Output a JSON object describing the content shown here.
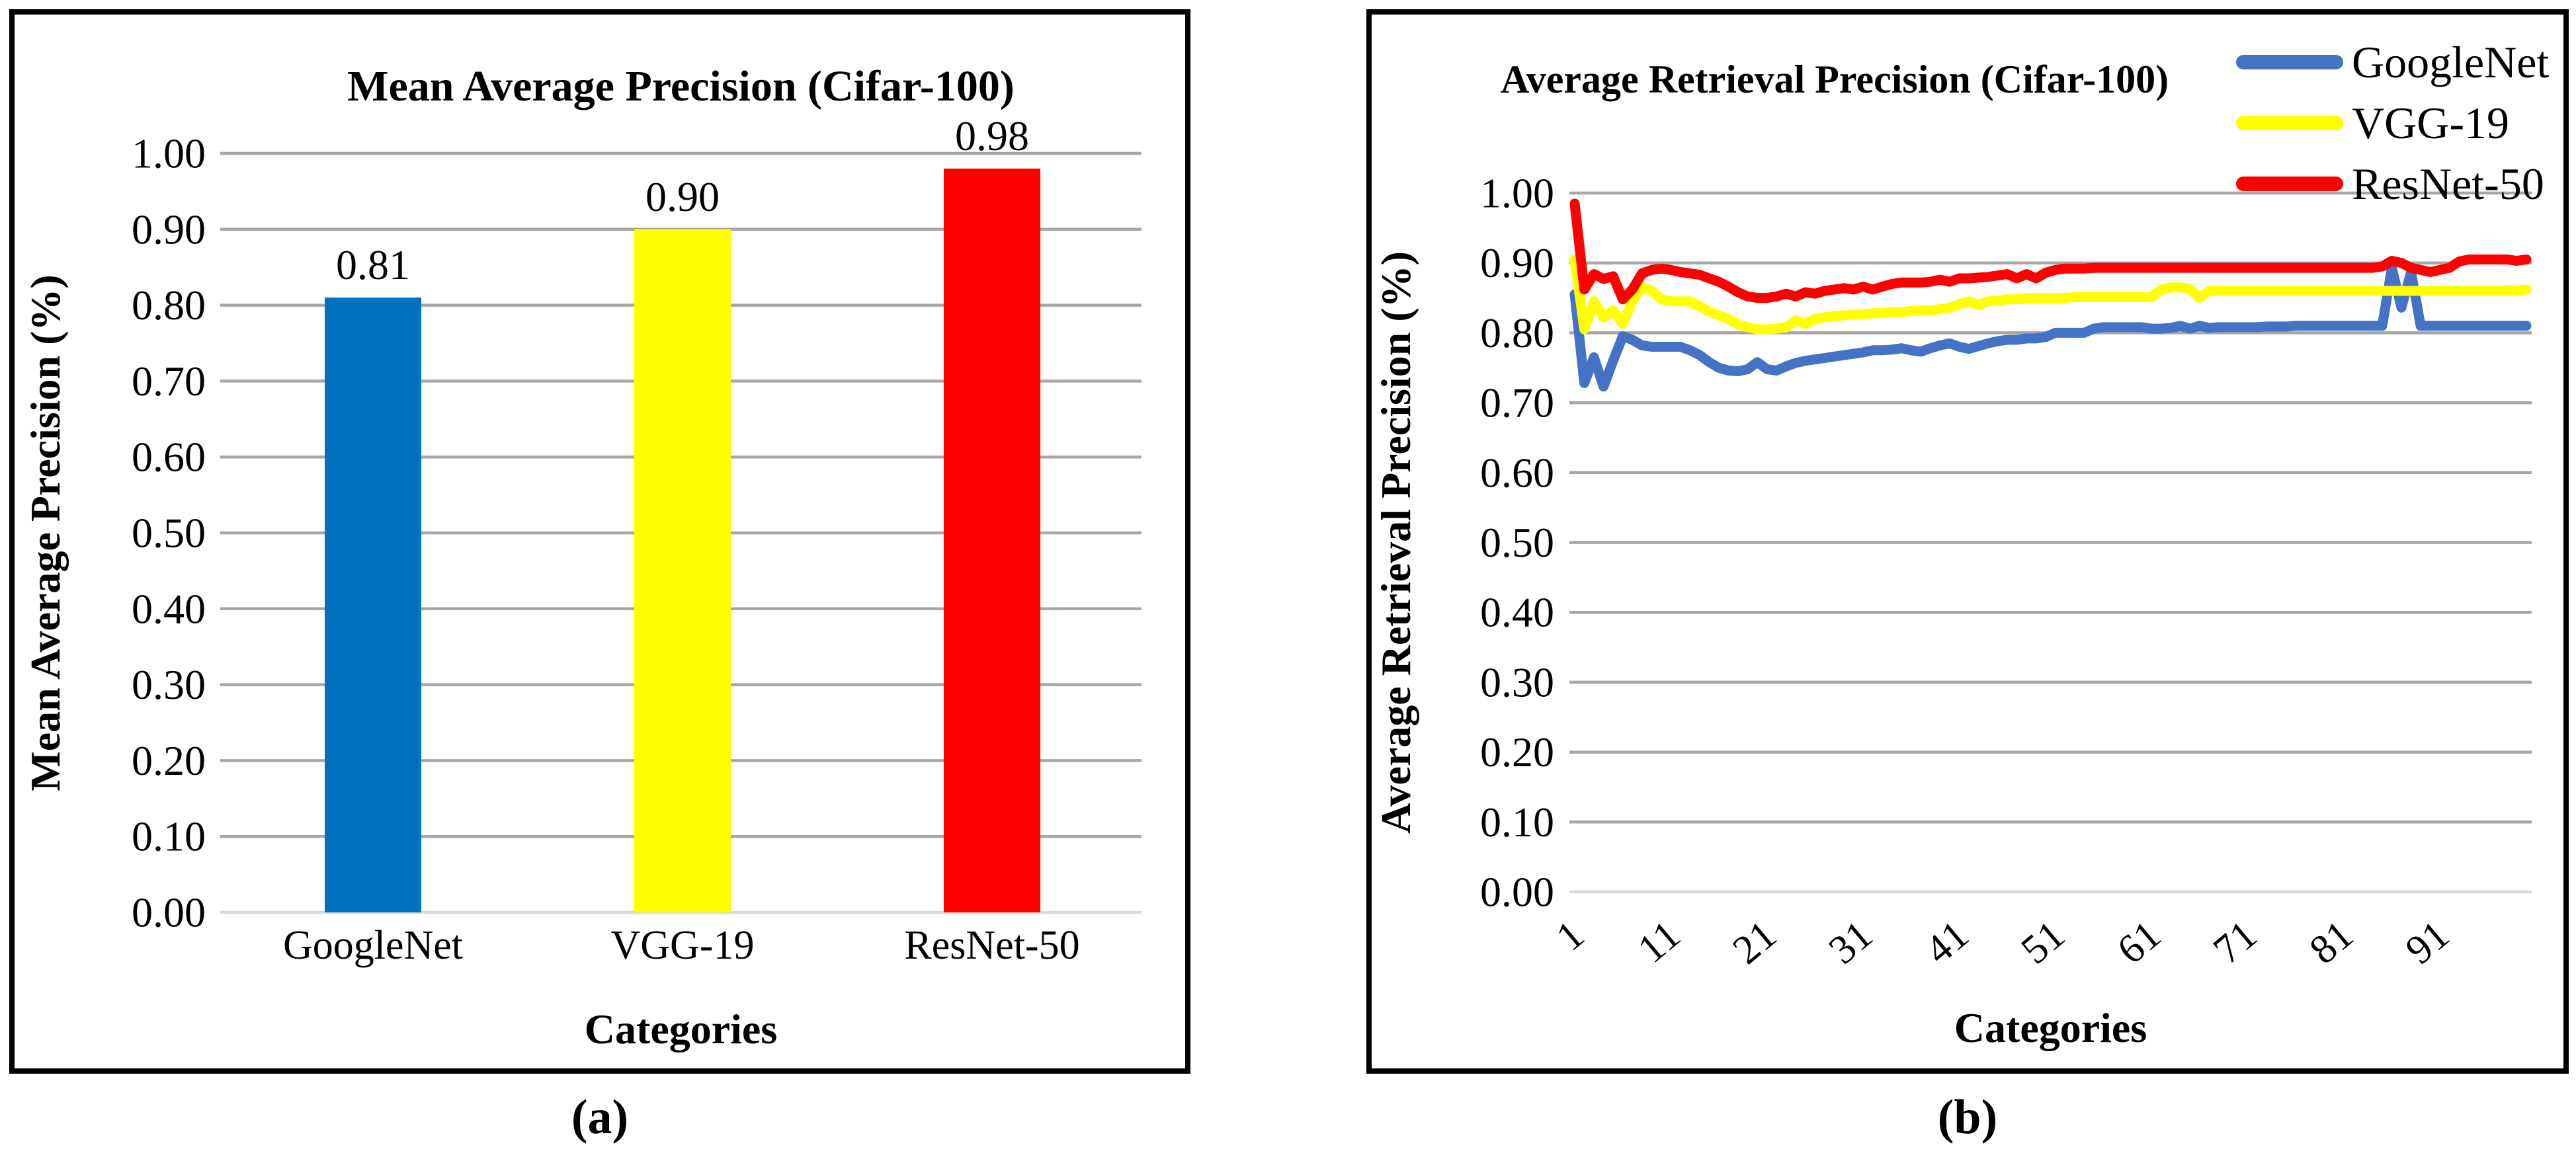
{
  "figure": {
    "background": "#FFFFFF",
    "border_color": "#000000",
    "grid_color": "#A6A6A6",
    "baseline_color": "#D9D9D9",
    "panels": [
      {
        "caption": "(a)"
      },
      {
        "caption": "(b)"
      }
    ]
  },
  "chart_data": [
    {
      "type": "bar",
      "title": "Mean Average Precision (Cifar-100)",
      "xlabel": "Categories",
      "ylabel": "Mean Average Precision (%)",
      "categories": [
        "GoogleNet",
        "VGG-19",
        "ResNet-50"
      ],
      "values": [
        0.81,
        0.9,
        0.98
      ],
      "value_labels": [
        "0.81",
        "0.90",
        "0.98"
      ],
      "bar_colors": [
        "#0070C0",
        "#FFFF00",
        "#FF0000"
      ],
      "ylim": [
        0.0,
        1.0
      ],
      "ytick_labels": [
        "1.00",
        "0.90",
        "0.80",
        "0.70",
        "0.60",
        "0.50",
        "0.40",
        "0.30",
        "0.20",
        "0.10",
        "0.00"
      ],
      "grid": true,
      "legend": null
    },
    {
      "type": "line",
      "title": "Average Retrieval Precision (Cifar-100)",
      "xlabel": "Categories",
      "ylabel": "Average Retrieval Precision (%)",
      "x_range": [
        1,
        100
      ],
      "xtick_labels": [
        "1",
        "11",
        "21",
        "31",
        "41",
        "51",
        "61",
        "71",
        "81",
        "91"
      ],
      "ylim": [
        0.0,
        1.0
      ],
      "ytick_labels": [
        "1.00",
        "0.90",
        "0.80",
        "0.70",
        "0.60",
        "0.50",
        "0.40",
        "0.30",
        "0.20",
        "0.10",
        "0.00"
      ],
      "grid": true,
      "legend_position": "top-right",
      "series": [
        {
          "name": "GoogleNet",
          "color": "#4472C4",
          "values": [
            0.855,
            0.728,
            0.765,
            0.723,
            0.76,
            0.795,
            0.79,
            0.782,
            0.78,
            0.78,
            0.78,
            0.78,
            0.775,
            0.768,
            0.758,
            0.75,
            0.746,
            0.745,
            0.748,
            0.758,
            0.748,
            0.746,
            0.752,
            0.757,
            0.76,
            0.762,
            0.764,
            0.766,
            0.768,
            0.77,
            0.772,
            0.775,
            0.775,
            0.776,
            0.778,
            0.775,
            0.773,
            0.778,
            0.782,
            0.785,
            0.78,
            0.777,
            0.781,
            0.785,
            0.788,
            0.79,
            0.79,
            0.792,
            0.792,
            0.794,
            0.8,
            0.8,
            0.8,
            0.8,
            0.806,
            0.808,
            0.808,
            0.808,
            0.808,
            0.808,
            0.806,
            0.806,
            0.807,
            0.81,
            0.806,
            0.81,
            0.807,
            0.808,
            0.808,
            0.808,
            0.808,
            0.808,
            0.809,
            0.809,
            0.809,
            0.81,
            0.81,
            0.81,
            0.81,
            0.81,
            0.81,
            0.81,
            0.81,
            0.81,
            0.81,
            0.893,
            0.836,
            0.887,
            0.81,
            0.81,
            0.81,
            0.81,
            0.81,
            0.81,
            0.81,
            0.81,
            0.81,
            0.81,
            0.81,
            0.81
          ]
        },
        {
          "name": "VGG-19",
          "color": "#FFFF00",
          "values": [
            0.905,
            0.805,
            0.845,
            0.822,
            0.832,
            0.813,
            0.845,
            0.866,
            0.86,
            0.848,
            0.845,
            0.845,
            0.845,
            0.838,
            0.83,
            0.825,
            0.82,
            0.812,
            0.808,
            0.805,
            0.805,
            0.806,
            0.808,
            0.818,
            0.813,
            0.82,
            0.822,
            0.824,
            0.825,
            0.826,
            0.827,
            0.828,
            0.828,
            0.83,
            0.83,
            0.831,
            0.832,
            0.832,
            0.834,
            0.836,
            0.841,
            0.845,
            0.84,
            0.845,
            0.846,
            0.848,
            0.848,
            0.849,
            0.85,
            0.85,
            0.85,
            0.85,
            0.851,
            0.851,
            0.851,
            0.851,
            0.851,
            0.851,
            0.851,
            0.851,
            0.851,
            0.862,
            0.865,
            0.865,
            0.863,
            0.85,
            0.86,
            0.86,
            0.86,
            0.86,
            0.86,
            0.86,
            0.86,
            0.86,
            0.86,
            0.86,
            0.86,
            0.86,
            0.86,
            0.86,
            0.86,
            0.86,
            0.86,
            0.86,
            0.86,
            0.86,
            0.86,
            0.86,
            0.86,
            0.86,
            0.86,
            0.86,
            0.86,
            0.86,
            0.86,
            0.86,
            0.86,
            0.861,
            0.861,
            0.862
          ]
        },
        {
          "name": "ResNet-50",
          "color": "#FF0000",
          "values": [
            0.985,
            0.862,
            0.884,
            0.877,
            0.881,
            0.848,
            0.862,
            0.885,
            0.89,
            0.892,
            0.89,
            0.887,
            0.885,
            0.883,
            0.878,
            0.873,
            0.866,
            0.858,
            0.852,
            0.85,
            0.85,
            0.852,
            0.856,
            0.852,
            0.858,
            0.856,
            0.86,
            0.862,
            0.864,
            0.862,
            0.866,
            0.862,
            0.866,
            0.87,
            0.872,
            0.872,
            0.872,
            0.873,
            0.876,
            0.873,
            0.878,
            0.878,
            0.879,
            0.88,
            0.882,
            0.884,
            0.878,
            0.884,
            0.878,
            0.886,
            0.89,
            0.892,
            0.892,
            0.892,
            0.893,
            0.893,
            0.893,
            0.893,
            0.893,
            0.893,
            0.893,
            0.893,
            0.893,
            0.893,
            0.893,
            0.893,
            0.893,
            0.893,
            0.893,
            0.893,
            0.893,
            0.893,
            0.893,
            0.893,
            0.893,
            0.893,
            0.893,
            0.893,
            0.893,
            0.893,
            0.893,
            0.893,
            0.893,
            0.893,
            0.895,
            0.903,
            0.9,
            0.893,
            0.89,
            0.887,
            0.89,
            0.893,
            0.902,
            0.905,
            0.905,
            0.905,
            0.905,
            0.905,
            0.903,
            0.905
          ]
        }
      ]
    }
  ]
}
